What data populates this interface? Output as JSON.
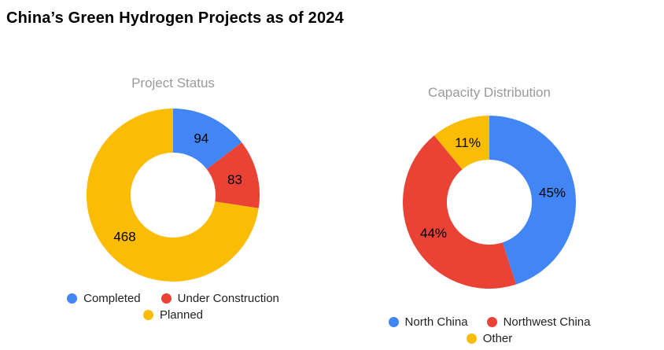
{
  "page_title": "China’s Green Hydrogen Projects as of 2024",
  "chart_data": [
    {
      "type": "pie",
      "subtype": "donut",
      "title": "Project Status",
      "categories": [
        "Completed",
        "Under Construction",
        "Planned"
      ],
      "values": [
        94,
        83,
        468
      ],
      "slice_labels": [
        "94",
        "83",
        "468"
      ],
      "colors": [
        "#4285F4",
        "#EA4335",
        "#FBBC04"
      ],
      "legend_position": "bottom",
      "start_angle_deg": 0,
      "direction": "clockwise"
    },
    {
      "type": "pie",
      "subtype": "donut",
      "title": "Capacity Distribution",
      "categories": [
        "North China",
        "Northwest China",
        "Other"
      ],
      "values": [
        45,
        44,
        11
      ],
      "slice_labels": [
        "45%",
        "44%",
        "11%"
      ],
      "colors": [
        "#4285F4",
        "#EA4335",
        "#FBBC04"
      ],
      "legend_position": "bottom",
      "start_angle_deg": 0,
      "direction": "clockwise"
    }
  ]
}
